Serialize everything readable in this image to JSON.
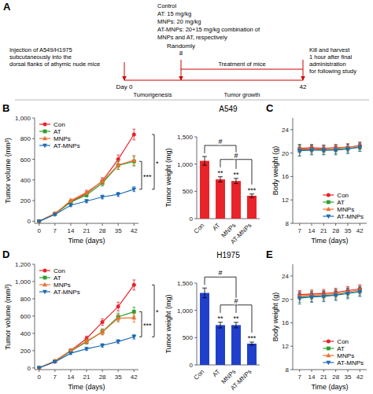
{
  "chart_data": [
    {
      "type": "timeline",
      "color": "#cc0000",
      "annotations": [
        "A",
        "Injection of A549/H1975\nsubcutaneously into the\ndorsal flanks of athymic nude mice",
        "Control\nAT: 15 mg/kg\nMNPs: 20 mg/kg\nAT-MNPs: 20+15 mg/kg combination of\nMNPs and AT, respectively",
        "Kill and harvest\n1 hour after final\nadministration\nfor following study",
        "Day 0",
        "Randomly\n8",
        "42",
        "Tumorigenesis",
        "Treatment of mice",
        "Tumor growth"
      ]
    },
    {
      "type": "line",
      "xlabel": "Time (days)",
      "ylabel": "Tumor volume (mm³)",
      "x": [
        0,
        7,
        14,
        21,
        28,
        35,
        42
      ],
      "xlim": [
        -2,
        44
      ],
      "xticks": [
        0,
        7,
        14,
        21,
        28,
        35,
        42
      ],
      "ylim": [
        -20,
        1000
      ],
      "yticks": [
        0,
        200,
        400,
        600,
        800,
        {
          "value": 1000,
          "label": "1,000"
        }
      ],
      "grid": false,
      "legend": "upper left",
      "series": [
        {
          "name": "Con",
          "color": "#e8242a",
          "marker": "circle",
          "values": [
            0,
            75,
            190,
            270,
            390,
            600,
            840
          ],
          "errors": [
            3,
            8,
            18,
            22,
            32,
            42,
            52
          ]
        },
        {
          "name": "AT",
          "color": "#2ca02c",
          "marker": "square",
          "values": [
            0,
            70,
            185,
            255,
            370,
            540,
            580
          ],
          "errors": [
            3,
            8,
            16,
            20,
            28,
            38,
            45
          ]
        },
        {
          "name": "MNPs",
          "color": "#f07030",
          "marker": "triangle-up",
          "values": [
            0,
            72,
            200,
            280,
            385,
            545,
            590
          ],
          "errors": [
            3,
            8,
            17,
            21,
            30,
            40,
            48
          ]
        },
        {
          "name": "AT-MNPs",
          "color": "#1f6bb5",
          "marker": "triangle-down",
          "values": [
            0,
            65,
            155,
            195,
            235,
            260,
            310
          ],
          "errors": [
            2,
            6,
            12,
            15,
            18,
            20,
            23
          ]
        }
      ],
      "annotations": [
        {
          "text": "B"
        },
        {
          "text": "*",
          "between": [
            "Con",
            "AT-MNPs"
          ]
        },
        {
          "text": "***",
          "between": [
            "AT",
            "AT-MNPs"
          ]
        }
      ]
    },
    {
      "type": "bar",
      "title": "A549",
      "ylabel": "Tumor weight (mg)",
      "categories": [
        "Con",
        "AT",
        "MNPs",
        "AT-MNPs"
      ],
      "values": [
        1060,
        720,
        690,
        420
      ],
      "errors": [
        80,
        48,
        48,
        32
      ],
      "color": "#e8242a",
      "ylim": [
        0,
        1500
      ],
      "yticks": [
        0,
        500,
        {
          "value": 1000,
          "label": "1,000"
        },
        {
          "value": 1500,
          "label": "1,500"
        }
      ],
      "grid": false,
      "annotations": [
        {
          "text": "**",
          "category": "AT"
        },
        {
          "text": "**",
          "category": "MNPs"
        },
        {
          "text": "***",
          "category": "AT-MNPs"
        },
        {
          "text": "#",
          "between": [
            "Con",
            "MNPs"
          ]
        },
        {
          "text": "#",
          "between": [
            "AT",
            "AT-MNPs"
          ]
        }
      ]
    },
    {
      "type": "line",
      "xlabel": "Time (days)",
      "ylabel": "Body weight (g)",
      "x": [
        7,
        14,
        21,
        28,
        35,
        42
      ],
      "xlim": [
        3,
        46
      ],
      "xticks": [
        7,
        14,
        21,
        28,
        35,
        42
      ],
      "ylim": [
        8,
        26
      ],
      "yticks": [
        8,
        12,
        16,
        20,
        24
      ],
      "grid": false,
      "legend": "lower right",
      "series": [
        {
          "name": "Con",
          "color": "#e8242a",
          "marker": "circle",
          "values": [
            20.8,
            20.9,
            20.8,
            20.9,
            21.0,
            21.3
          ],
          "errors": [
            0.7,
            0.6,
            0.6,
            0.6,
            0.6,
            0.6
          ]
        },
        {
          "name": "AT",
          "color": "#2ca02c",
          "marker": "square",
          "values": [
            20.5,
            20.6,
            20.5,
            20.6,
            20.8,
            21.0
          ],
          "errors": [
            1.0,
            0.8,
            0.7,
            0.7,
            0.7,
            0.7
          ]
        },
        {
          "name": "MNPs",
          "color": "#f07030",
          "marker": "triangle-up",
          "values": [
            20.7,
            20.7,
            20.7,
            20.8,
            21.0,
            21.2
          ],
          "errors": [
            0.6,
            0.6,
            0.6,
            0.6,
            0.6,
            0.6
          ]
        },
        {
          "name": "AT-MNPs",
          "color": "#1f6bb5",
          "marker": "triangle-down",
          "values": [
            20.4,
            20.5,
            20.5,
            20.5,
            20.7,
            21.0
          ],
          "errors": [
            0.9,
            0.8,
            0.8,
            0.8,
            0.8,
            0.7
          ]
        }
      ],
      "annotations": [
        {
          "text": "C"
        }
      ]
    },
    {
      "type": "line",
      "xlabel": "Time (days)",
      "ylabel": "Tumor volume (mm³)",
      "x": [
        0,
        7,
        14,
        21,
        28,
        35,
        42
      ],
      "xlim": [
        -2,
        44
      ],
      "xticks": [
        0,
        7,
        14,
        21,
        28,
        35,
        42
      ],
      "ylim": [
        -20,
        1200
      ],
      "yticks": [
        0,
        200,
        400,
        600,
        800,
        {
          "value": 1000,
          "label": "1,000"
        },
        {
          "value": 1200,
          "label": "1,200"
        }
      ],
      "grid": false,
      "legend": "upper left",
      "series": [
        {
          "name": "Con",
          "color": "#e8242a",
          "marker": "circle",
          "values": [
            0,
            80,
            200,
            340,
            530,
            710,
            960
          ],
          "errors": [
            3,
            10,
            20,
            28,
            38,
            50,
            58
          ]
        },
        {
          "name": "AT",
          "color": "#2ca02c",
          "marker": "square",
          "values": [
            0,
            75,
            195,
            300,
            420,
            590,
            650
          ],
          "errors": [
            3,
            10,
            18,
            24,
            33,
            44,
            52
          ]
        },
        {
          "name": "MNPs",
          "color": "#f07030",
          "marker": "triangle-up",
          "values": [
            0,
            76,
            200,
            310,
            415,
            575,
            580
          ],
          "errors": [
            3,
            10,
            18,
            25,
            33,
            43,
            50
          ]
        },
        {
          "name": "AT-MNPs",
          "color": "#1f6bb5",
          "marker": "triangle-down",
          "values": [
            0,
            70,
            170,
            220,
            260,
            305,
            360
          ],
          "errors": [
            2,
            8,
            14,
            18,
            20,
            22,
            26
          ]
        }
      ],
      "annotations": [
        {
          "text": "D"
        },
        {
          "text": "*",
          "between": [
            "Con",
            "AT-MNPs"
          ]
        },
        {
          "text": "***",
          "between": [
            "AT",
            "AT-MNPs"
          ]
        }
      ]
    },
    {
      "type": "bar",
      "title": "H1975",
      "ylabel": "Tumor weight (mg)",
      "categories": [
        "Con",
        "AT",
        "MNPs",
        "AT-MNPs"
      ],
      "values": [
        1320,
        730,
        730,
        390
      ],
      "errors": [
        90,
        52,
        50,
        28
      ],
      "color": "#2040cc",
      "ylim": [
        0,
        1500
      ],
      "yticks": [
        0,
        500,
        {
          "value": 1000,
          "label": "1,000"
        },
        {
          "value": 1500,
          "label": "1,500"
        }
      ],
      "grid": false,
      "annotations": [
        {
          "text": "**",
          "category": "AT"
        },
        {
          "text": "**",
          "category": "MNPs"
        },
        {
          "text": "***",
          "category": "AT-MNPs"
        },
        {
          "text": "#",
          "between": [
            "Con",
            "MNPs"
          ]
        },
        {
          "text": "#",
          "between": [
            "AT",
            "AT-MNPs"
          ]
        }
      ]
    },
    {
      "type": "line",
      "xlabel": "Time (days)",
      "ylabel": "Body weight (g)",
      "x": [
        7,
        14,
        21,
        28,
        35,
        42
      ],
      "xlim": [
        3,
        46
      ],
      "xticks": [
        7,
        14,
        21,
        28,
        35,
        42
      ],
      "ylim": [
        8,
        26
      ],
      "yticks": [
        8,
        12,
        16,
        20,
        24
      ],
      "grid": false,
      "legend": "lower right",
      "series": [
        {
          "name": "Con",
          "color": "#e8242a",
          "marker": "circle",
          "values": [
            20.8,
            20.9,
            21.0,
            21.2,
            21.5,
            21.8
          ],
          "errors": [
            0.7,
            0.7,
            0.7,
            0.7,
            0.7,
            0.7
          ]
        },
        {
          "name": "AT",
          "color": "#2ca02c",
          "marker": "square",
          "values": [
            20.4,
            20.5,
            20.6,
            20.8,
            21.1,
            21.4
          ],
          "errors": [
            0.9,
            0.9,
            0.8,
            0.8,
            0.8,
            0.8
          ]
        },
        {
          "name": "MNPs",
          "color": "#f07030",
          "marker": "triangle-up",
          "values": [
            20.6,
            20.7,
            20.8,
            21.0,
            21.3,
            21.6
          ],
          "errors": [
            0.7,
            0.7,
            0.7,
            0.7,
            0.7,
            0.7
          ]
        },
        {
          "name": "AT-MNPs",
          "color": "#1f6bb5",
          "marker": "triangle-down",
          "values": [
            20.2,
            20.4,
            20.5,
            20.7,
            21.0,
            21.3
          ],
          "errors": [
            1.0,
            0.9,
            0.9,
            0.9,
            0.9,
            0.8
          ]
        }
      ],
      "annotations": [
        {
          "text": "E"
        }
      ]
    }
  ]
}
